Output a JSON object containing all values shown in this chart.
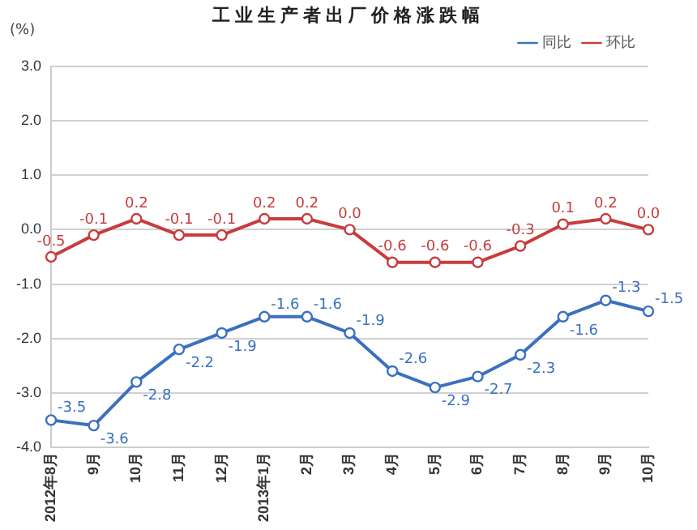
{
  "chart_data": {
    "type": "line",
    "title": "工业生产者出厂价格涨跌幅",
    "ylabel": "(%)",
    "categories": [
      "2012年8月",
      "9月",
      "10月",
      "11月",
      "12月",
      "2013年1月",
      "2月",
      "3月",
      "4月",
      "5月",
      "6月",
      "7月",
      "8月",
      "9月",
      "10月"
    ],
    "series": [
      {
        "name": "同比",
        "color": "#3a70c0",
        "values": [
          -3.5,
          -3.6,
          -2.8,
          -2.2,
          -1.9,
          -1.6,
          -1.6,
          -1.9,
          -2.6,
          -2.9,
          -2.7,
          -2.3,
          -1.6,
          -1.3,
          -1.5
        ],
        "value_labels": [
          "-3.5",
          "-3.6",
          "-2.8",
          "-2.2",
          "-1.9",
          "-1.6",
          "-1.6",
          "-1.9",
          "-2.6",
          "-2.9",
          "-2.7",
          "-2.3",
          "-1.6",
          "-1.3",
          "-1.5"
        ]
      },
      {
        "name": "环比",
        "color": "#c83c3c",
        "values": [
          -0.5,
          -0.1,
          0.2,
          -0.1,
          -0.1,
          0.2,
          0.2,
          0.0,
          -0.6,
          -0.6,
          -0.6,
          -0.3,
          0.1,
          0.2,
          0.0
        ],
        "value_labels": [
          "-0.5",
          "-0.1",
          "0.2",
          "-0.1",
          "-0.1",
          "0.2",
          "0.2",
          "0.0",
          "-0.6",
          "-0.6",
          "-0.6",
          "-0.3",
          "0.1",
          "0.2",
          "0.0"
        ]
      }
    ],
    "ylim": [
      -4,
      3
    ],
    "yticks": [
      {
        "value": -4,
        "label": "-4.0"
      },
      {
        "value": -3,
        "label": "-3.0"
      },
      {
        "value": -2,
        "label": "-2.0"
      },
      {
        "value": -1,
        "label": "-1.0"
      },
      {
        "value": 0,
        "label": "0.0"
      },
      {
        "value": 1,
        "label": "1.0"
      },
      {
        "value": 2,
        "label": "2.0"
      },
      {
        "value": 3,
        "label": "3.0"
      }
    ],
    "grid": "y",
    "legend": "top right",
    "marker": "circle",
    "line_style": "solid"
  }
}
